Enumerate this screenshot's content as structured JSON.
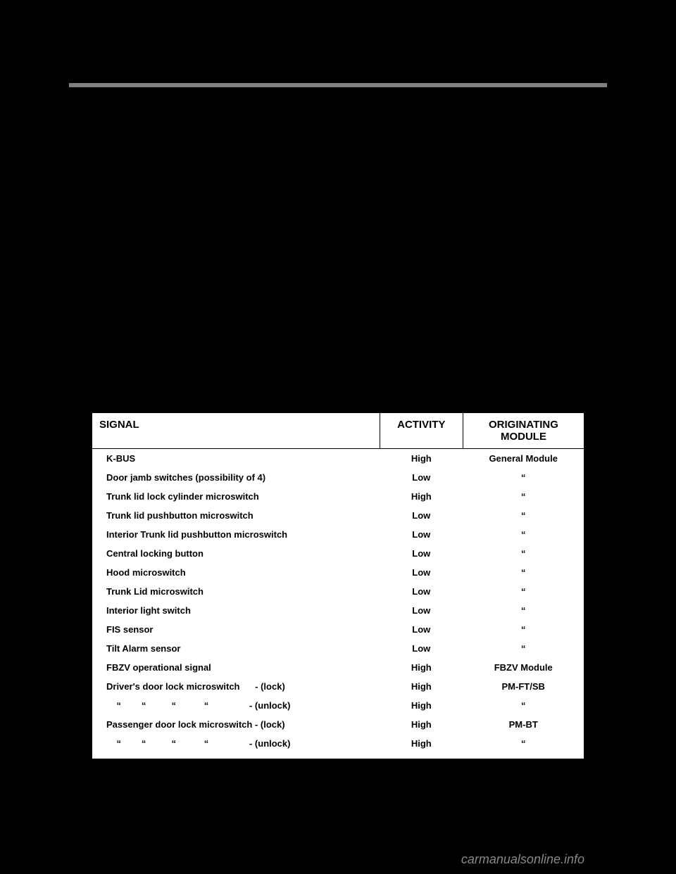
{
  "table": {
    "headers": {
      "signal": "SIGNAL",
      "activity": "ACTIVITY",
      "origin": "ORIGINATING MODULE"
    },
    "rows": [
      {
        "signal": "K-BUS",
        "activity": "High",
        "origin": "General Module"
      },
      {
        "signal": "Door jamb switches (possibility of 4)",
        "activity": "Low",
        "origin": "“"
      },
      {
        "signal": "Trunk lid lock cylinder microswitch",
        "activity": "High",
        "origin": "“"
      },
      {
        "signal": "Trunk lid pushbutton microswitch",
        "activity": "Low",
        "origin": "“"
      },
      {
        "signal": "Interior Trunk lid pushbutton microswitch",
        "activity": "Low",
        "origin": "“"
      },
      {
        "signal": "Central locking button",
        "activity": "Low",
        "origin": "“"
      },
      {
        "signal": "Hood microswitch",
        "activity": "Low",
        "origin": "“"
      },
      {
        "signal": "Trunk Lid microswitch",
        "activity": "Low",
        "origin": "“"
      },
      {
        "signal": "Interior light switch",
        "activity": "Low",
        "origin": "“"
      },
      {
        "signal": "FIS sensor",
        "activity": "Low",
        "origin": "“"
      },
      {
        "signal": "Tilt Alarm sensor",
        "activity": "Low",
        "origin": "“"
      },
      {
        "signal": "FBZV operational signal",
        "activity": "High",
        "origin": "FBZV Module"
      },
      {
        "signal": "Driver's door lock microswitch      - (lock)",
        "activity": "High",
        "origin": "PM-FT/SB"
      },
      {
        "signal": "    “        “          “           “                - (unlock)",
        "activity": "High",
        "origin": "“"
      },
      {
        "signal": "Passenger door lock microswitch - (lock)",
        "activity": "High",
        "origin": "PM-BT"
      },
      {
        "signal": "    “        “          “           “                - (unlock)",
        "activity": "High",
        "origin": "“"
      }
    ]
  },
  "watermark": "carmanualsonline.info",
  "colors": {
    "background": "#000000",
    "table_bg": "#ffffff",
    "divider": "#808080",
    "text": "#000000",
    "watermark": "#888888"
  }
}
